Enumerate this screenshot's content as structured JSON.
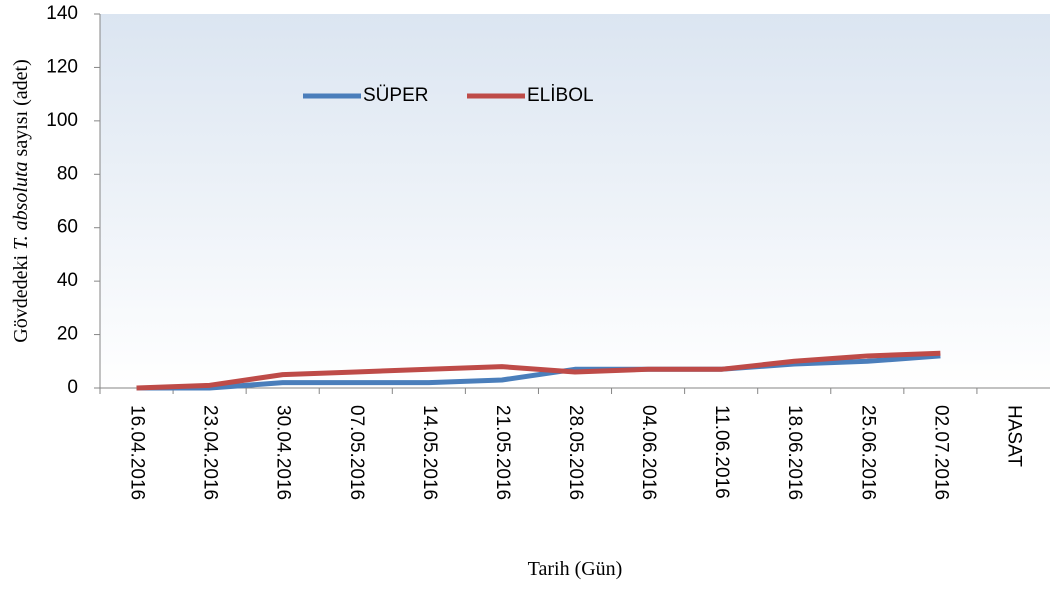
{
  "chart_data": {
    "type": "line",
    "ylabel": [
      "Gövdedeki ",
      "T. absoluta",
      " sayısı (adet)"
    ],
    "xlabel": "Tarih (Gün)",
    "categories": [
      "16.04.2016",
      "23.04.2016",
      "30.04.2016",
      "07.05.2016",
      "14.05.2016",
      "21.05.2016",
      "28.05.2016",
      "04.06.2016",
      "11.06.2016",
      "18.06.2016",
      "25.06.2016",
      "02.07.2016",
      "HASAT"
    ],
    "series": [
      {
        "name": "SÜPER",
        "color": "#4a7ebb",
        "values": [
          0,
          0,
          2,
          2,
          2,
          3,
          7,
          7,
          7,
          9,
          10,
          12,
          null
        ]
      },
      {
        "name": "ELİBOL",
        "color": "#be4b48",
        "values": [
          0,
          1,
          5,
          6,
          7,
          8,
          6,
          7,
          7,
          10,
          12,
          13,
          null
        ]
      }
    ],
    "ylim": [
      0,
      140
    ],
    "yticks": [
      0,
      20,
      40,
      60,
      80,
      100,
      120,
      140
    ],
    "legend": "top"
  }
}
